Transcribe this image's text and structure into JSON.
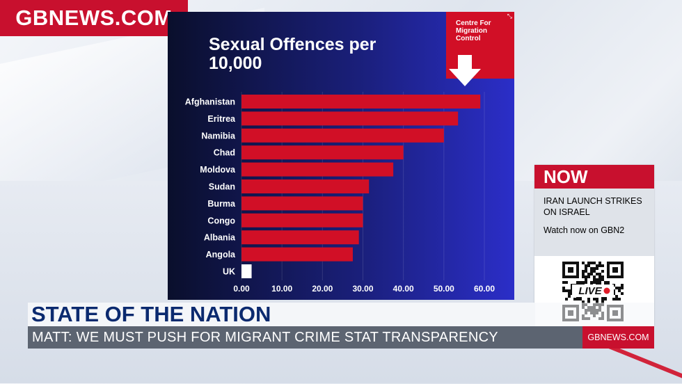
{
  "brand": {
    "logo_text": "GBNEWS.COM",
    "accent_color": "#c8102e"
  },
  "chart_data": {
    "type": "bar",
    "orientation": "horizontal",
    "title": "Sexual Offences per 10,000",
    "categories": [
      "Afghanistan",
      "Eritrea",
      "Namibia",
      "Chad",
      "Moldova",
      "Sudan",
      "Burma",
      "Congo",
      "Albania",
      "Angola",
      "UK"
    ],
    "values": [
      59.0,
      53.5,
      50.0,
      40.0,
      37.5,
      31.5,
      30.0,
      30.0,
      29.0,
      27.5,
      2.5
    ],
    "xlim": [
      0,
      60
    ],
    "x_ticks": [
      "0.00",
      "10.00",
      "20.00",
      "30.00",
      "40.00",
      "50.00",
      "60.00"
    ],
    "bar_colors": {
      "default": "#d10f26",
      "highlight": "#ffffff"
    },
    "highlight_category": "UK",
    "grid": true
  },
  "source": {
    "text": "Centre For Migration Control",
    "expand_icon": "expand-icon"
  },
  "now_panel": {
    "header": "NOW",
    "headline": "IRAN LAUNCH STRIKES ON ISRAEL",
    "watch_text": "Watch now on GBN2",
    "qr_label": "LIVE"
  },
  "lower_third": {
    "title": "STATE OF THE NATION",
    "strap": "MATT: WE MUST PUSH FOR MIGRANT CRIME STAT TRANSPARENCY",
    "site": "GBNEWS.COM"
  }
}
